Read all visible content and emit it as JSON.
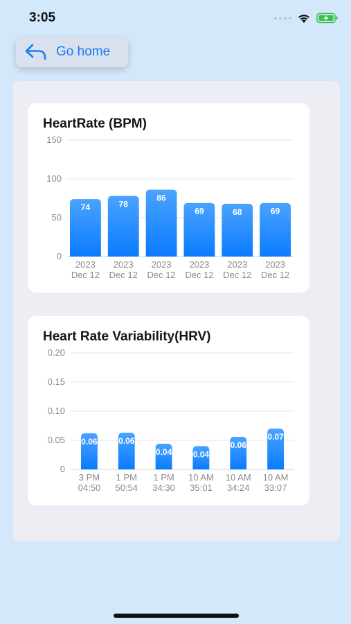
{
  "status_bar": {
    "time": "3:05"
  },
  "nav": {
    "back_label": "Go home"
  },
  "colors": {
    "accent": "#1a7cf5",
    "bar_top": "#4aa3ff",
    "bar_bottom": "#0a7bff",
    "background": "#d4e8fb",
    "battery": "#37c24a"
  },
  "chart_data": [
    {
      "type": "bar",
      "title": "HeartRate (BPM)",
      "categories": [
        [
          "2023",
          "Dec 12"
        ],
        [
          "2023",
          "Dec 12"
        ],
        [
          "2023",
          "Dec 12"
        ],
        [
          "2023",
          "Dec 12"
        ],
        [
          "2023",
          "Dec 12"
        ],
        [
          "2023",
          "Dec 12"
        ]
      ],
      "values": [
        74,
        78,
        86,
        69,
        68,
        69
      ],
      "value_labels": [
        "74",
        "78",
        "86",
        "69",
        "68",
        "69"
      ],
      "yticks": [
        "0",
        "50",
        "100",
        "150"
      ],
      "ylim": [
        0,
        150
      ],
      "grid": true
    },
    {
      "type": "bar",
      "title": "Heart Rate Variability(HRV)",
      "categories": [
        [
          "3 PM",
          "04:50"
        ],
        [
          "1 PM",
          "50:54"
        ],
        [
          "1 PM",
          "34:30"
        ],
        [
          "10 AM",
          "35:01"
        ],
        [
          "10 AM",
          "34:24"
        ],
        [
          "10 AM",
          "33:07"
        ]
      ],
      "values": [
        0.062,
        0.063,
        0.044,
        0.04,
        0.056,
        0.07
      ],
      "value_labels": [
        "0.06",
        "0.06",
        "0.04",
        "0.04",
        "0.06",
        "0.07"
      ],
      "yticks": [
        "0",
        "0.05",
        "0.10",
        "0.15",
        "0.20"
      ],
      "ylim": [
        0,
        0.2
      ],
      "grid": true
    }
  ]
}
